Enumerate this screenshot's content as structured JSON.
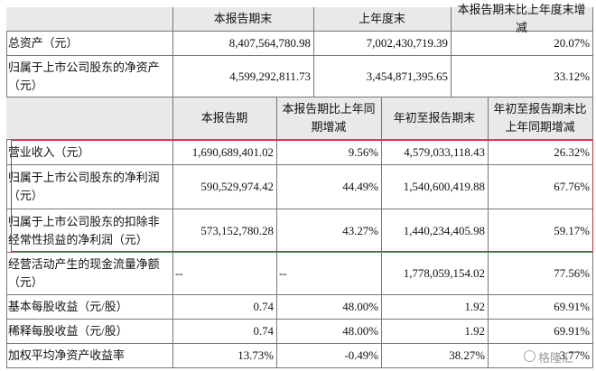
{
  "top_table": {
    "header": [
      "本报告期末",
      "上年度末",
      "本报告期末比上年度末增减"
    ],
    "rows": [
      [
        "总资产（元）",
        "8,407,564,780.98",
        "7,002,430,719.39",
        "20.07%"
      ],
      [
        "归属于上市公司股东的净资产（元）",
        "4,599,292,811.73",
        "3,454,871,395.65",
        "33.12%"
      ]
    ]
  },
  "bottom_table": {
    "header": [
      "本报告期",
      "本报告期比上年同期增减",
      "年初至报告期末",
      "年初至报告期末比上年同期增减"
    ],
    "rows": [
      [
        "营业收入（元）",
        "1,690,689,401.02",
        "9.56%",
        "4,579,033,118.43",
        "26.32%"
      ],
      [
        "归属于上市公司股东的净利润（元）",
        "590,529,974.42",
        "44.49%",
        "1,540,600,419.88",
        "67.76%"
      ],
      [
        "归属于上市公司股东的扣除非经常性损益的净利润（元）",
        "573,152,780.28",
        "43.27%",
        "1,440,234,405.98",
        "59.17%"
      ],
      [
        "经营活动产生的现金流量净额（元）",
        "--",
        "--",
        "1,778,059,154.02",
        "77.56%"
      ],
      [
        "基本每股收益（元/股）",
        "0.74",
        "48.00%",
        "1.92",
        "69.91%"
      ],
      [
        "稀释每股收益（元/股）",
        "0.74",
        "48.00%",
        "1.92",
        "69.91%"
      ],
      [
        "加权平均净资产收益率",
        "13.73%",
        "-0.49%",
        "38.27%",
        "3.77%"
      ]
    ]
  },
  "watermark": "格隆汇"
}
